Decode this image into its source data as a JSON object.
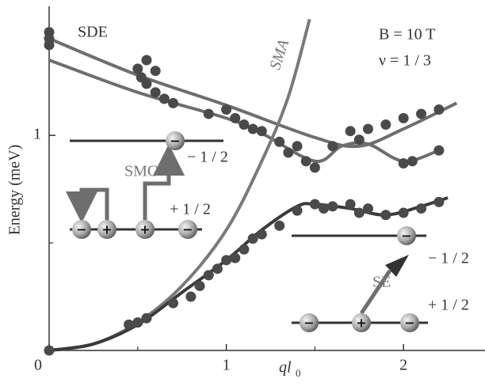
{
  "chart_data": {
    "type": "scatter",
    "y_label": "Energy (meV)",
    "x_label": "ql",
    "x_label_sub": "0",
    "xlim": [
      0,
      2.46
    ],
    "ylim": [
      0,
      1.6
    ],
    "xticks": [
      0,
      1,
      2
    ],
    "xminor_ticks": [
      0.5,
      1.5
    ],
    "yticks": [
      1
    ],
    "yminor_ticks": [
      0.5
    ],
    "series": [
      {
        "color": "#4a4a4a",
        "x": [
          0,
          0,
          0,
          0.5,
          0.52,
          0.55,
          0.55,
          0.6,
          0.6,
          0.65,
          0.7,
          0.9,
          1.0,
          1.05,
          1.1,
          1.15,
          1.2,
          1.3,
          1.35,
          1.4,
          1.45,
          1.5,
          1.6,
          1.7,
          1.75,
          1.8,
          1.9,
          2.0,
          2.0,
          2.05,
          2.1,
          2.2,
          2.2
        ],
        "values": [
          1.48,
          1.45,
          1.42,
          1.31,
          1.27,
          1.24,
          1.35,
          1.2,
          1.3,
          1.17,
          1.15,
          1.1,
          1.12,
          1.08,
          1.05,
          1.03,
          1.02,
          0.97,
          0.92,
          0.95,
          0.88,
          0.85,
          0.95,
          1.02,
          0.98,
          1.03,
          1.05,
          1.08,
          0.87,
          0.88,
          1.1,
          1.12,
          0.93
        ]
      },
      {
        "color": "#4a4a4a",
        "x": [
          0,
          0.45,
          0.5,
          0.55,
          0.7,
          0.8,
          0.85,
          0.9,
          0.95,
          1.0,
          1.05,
          1.1,
          1.15,
          1.2,
          1.3,
          1.4,
          1.5,
          1.55,
          1.6,
          1.7,
          1.75,
          1.8,
          1.9,
          2.0,
          2.1,
          2.2
        ],
        "values": [
          0,
          0.12,
          0.13,
          0.15,
          0.22,
          0.25,
          0.3,
          0.35,
          0.38,
          0.42,
          0.43,
          0.47,
          0.52,
          0.54,
          0.58,
          0.65,
          0.68,
          0.66,
          0.67,
          0.68,
          0.64,
          0.66,
          0.63,
          0.64,
          0.66,
          0.69
        ]
      }
    ],
    "curves": [
      {
        "color": "#6e6e6e",
        "x": [
          0,
          0.5,
          1.0,
          1.5,
          1.75,
          2.0,
          2.3
        ],
        "values": [
          1.45,
          1.28,
          1.14,
          0.99,
          0.95,
          1.03,
          1.15
        ]
      },
      {
        "color": "#6e6e6e",
        "x": [
          0,
          0.5,
          1.0,
          1.2,
          1.5,
          1.65,
          1.8,
          2.0,
          2.2
        ],
        "values": [
          1.35,
          1.2,
          1.08,
          1.01,
          0.88,
          0.95,
          0.96,
          0.88,
          0.93
        ]
      },
      {
        "color": "#7a7a7a",
        "x": [
          0,
          0.25,
          0.5,
          0.75,
          1.0,
          1.2,
          1.35,
          1.47
        ],
        "values": [
          0,
          0.03,
          0.13,
          0.3,
          0.56,
          0.88,
          1.18,
          1.54
        ]
      },
      {
        "color": "#3a3a3a",
        "x": [
          0,
          0.25,
          0.5,
          0.75,
          1.0,
          1.2,
          1.4,
          1.5,
          1.7,
          1.9,
          2.1,
          2.25
        ],
        "values": [
          0,
          0.03,
          0.12,
          0.27,
          0.42,
          0.56,
          0.67,
          0.68,
          0.66,
          0.63,
          0.67,
          0.71
        ]
      }
    ],
    "annotations": {
      "sde": "SDE",
      "sma": "SMA",
      "field": "B = 10 T",
      "filling": "ν = 1 / 3"
    },
    "insets": {
      "smg": {
        "label": "SMG",
        "minus": "− 1 / 2",
        "plus": "+ 1 / 2",
        "top_ball": "−",
        "row_balls": [
          "−",
          "+",
          "+",
          "−"
        ]
      },
      "se": {
        "label": "SE",
        "minus": "− 1 / 2",
        "plus": "+ 1 / 2",
        "top_ball": "−",
        "row_balls": [
          "−",
          "+",
          "−"
        ]
      }
    }
  }
}
